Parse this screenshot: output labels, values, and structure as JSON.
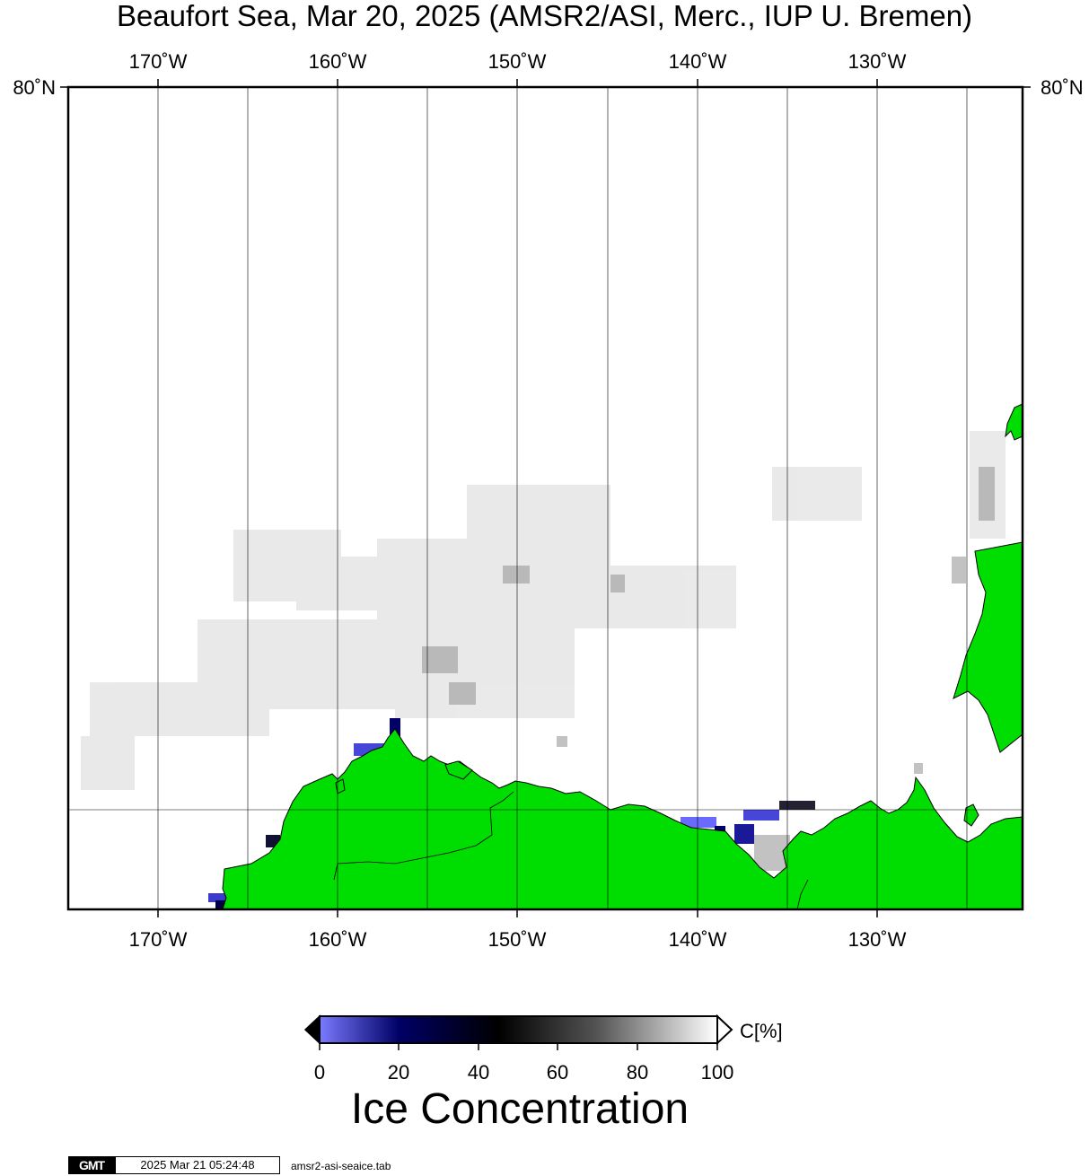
{
  "title": "Beaufort Sea, Mar 20, 2025 (AMSR2/ASI, Merc., IUP U. Bremen)",
  "map": {
    "lon_ticks": [
      "170˚W",
      "160˚W",
      "150˚W",
      "140˚W",
      "130˚W"
    ],
    "lat_label_left": "80˚N",
    "lat_label_right": "80˚N",
    "land_color": "#00dd00",
    "frame_color": "#000000"
  },
  "colorbar": {
    "title": "Ice Concentration",
    "unit": "C[%]",
    "ticks": [
      "0",
      "20",
      "40",
      "60",
      "80",
      "100"
    ],
    "colors": [
      "#7a7aff",
      "#000066",
      "#000000",
      "#555555",
      "#ffffff"
    ]
  },
  "footer": {
    "logo": "GMT",
    "timestamp": "2025 Mar 21 05:24:48",
    "script": "amsr2-asi-seaice.tab"
  }
}
